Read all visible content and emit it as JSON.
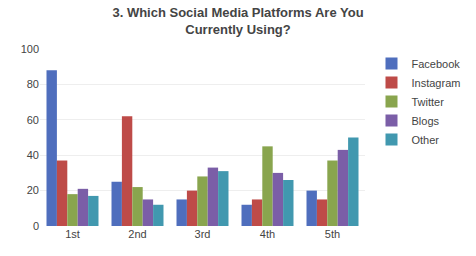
{
  "chart_data": {
    "type": "bar",
    "title": "3. Which Social Media Platforms Are You\nCurrently Using?",
    "categories": [
      "1st",
      "2nd",
      "3rd",
      "4th",
      "5th"
    ],
    "series": [
      {
        "name": "Facebook",
        "color": "#4F6EBD",
        "values": [
          88,
          25,
          15,
          12,
          20
        ]
      },
      {
        "name": "Instagram",
        "color": "#BE4B48",
        "values": [
          37,
          62,
          20,
          15,
          15
        ]
      },
      {
        "name": "Twitter",
        "color": "#89A54E",
        "values": [
          18,
          22,
          28,
          45,
          37
        ]
      },
      {
        "name": "Blogs",
        "color": "#7B5EA7",
        "values": [
          21,
          15,
          33,
          30,
          43
        ]
      },
      {
        "name": "Other",
        "color": "#4198AF",
        "values": [
          17,
          12,
          31,
          26,
          50
        ]
      }
    ],
    "ylim": [
      0,
      100
    ],
    "yticks": [
      0,
      20,
      40,
      60,
      80,
      100
    ],
    "grid": true,
    "legend": "right"
  }
}
